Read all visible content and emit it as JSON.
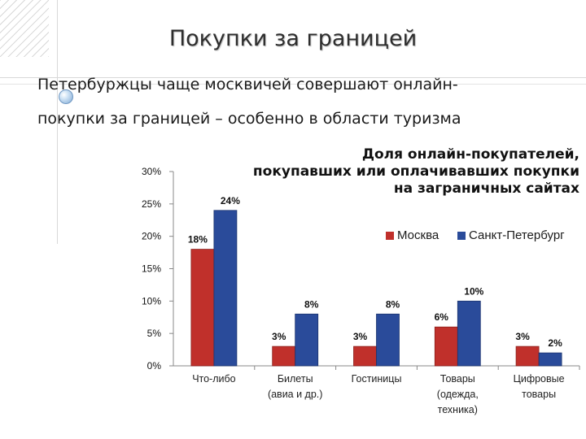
{
  "slide": {
    "title": "Покупки за границей",
    "subtitle_line1": "Петербуржцы чаще москвичей совершают онлайн-",
    "subtitle_line2": "покупки за границей – особенно в области туризма"
  },
  "colors": {
    "moscow": "#c0302b",
    "spb": "#2a4b9a"
  },
  "chart_data": {
    "type": "bar",
    "title_lines": [
      "Доля онлайн-покупателей,",
      "покупавших или оплачивавших покупки",
      "на заграничных сайтах"
    ],
    "categories": [
      [
        "Что-либо"
      ],
      [
        "Билеты",
        "(авиа и др.)"
      ],
      [
        "Гостиницы"
      ],
      [
        "Товары",
        "(одежда,",
        "техника)"
      ],
      [
        "Цифровые",
        "товары"
      ]
    ],
    "series": [
      {
        "name": "Москва",
        "values": [
          18,
          3,
          3,
          6,
          3
        ],
        "labels": [
          "18%",
          "3%",
          "3%",
          "6%",
          "3%"
        ]
      },
      {
        "name": "Санкт-Петербург",
        "values": [
          24,
          8,
          8,
          10,
          2
        ],
        "labels": [
          "24%",
          "8%",
          "8%",
          "10%",
          "2%"
        ]
      }
    ],
    "yticks": [
      "0%",
      "5%",
      "10%",
      "15%",
      "20%",
      "25%",
      "30%"
    ],
    "ylim": [
      0,
      30
    ],
    "legend_position": "top-right",
    "grid": false
  }
}
